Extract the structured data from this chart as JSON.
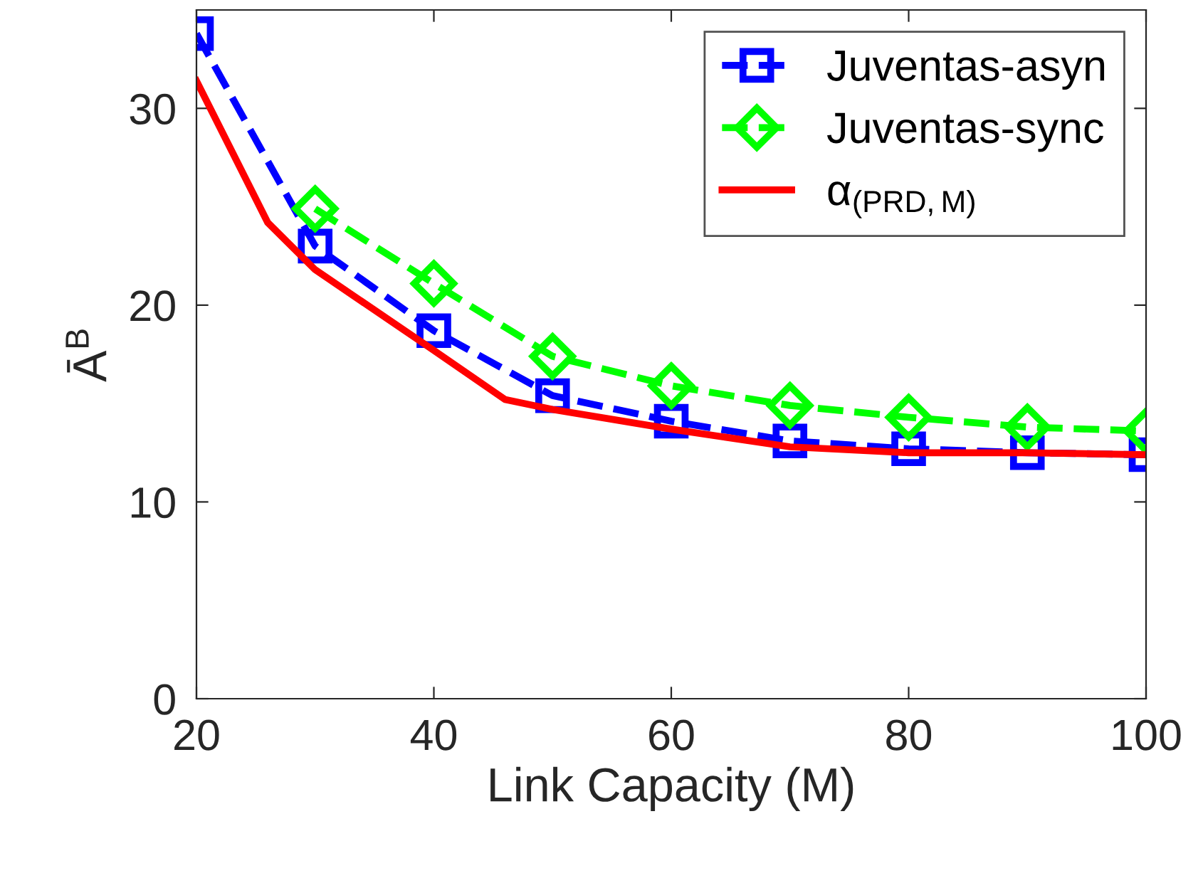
{
  "chart_data": {
    "type": "line",
    "xlabel": "Link Capacity (M)",
    "ylabel": "Ā$^{B}$",
    "xlim": [
      20,
      100
    ],
    "xticks": [
      20,
      40,
      60,
      80,
      100
    ],
    "ylim": [
      0,
      35
    ],
    "yticks": [
      0,
      10,
      20,
      30
    ],
    "grid": false,
    "legend": "top right",
    "series": [
      {
        "name": "Juventas-asyn",
        "color": "#0000ff",
        "marker": "square",
        "line_style": "dashed",
        "x": [
          20,
          30,
          40,
          50,
          60,
          70,
          80,
          90,
          100
        ],
        "values": [
          33.8,
          23.0,
          18.7,
          15.4,
          14.1,
          13.1,
          12.7,
          12.5,
          12.4
        ]
      },
      {
        "name": "Juventas-sync",
        "color": "#00ff00",
        "marker": "diamond",
        "line_style": "dashed",
        "x": [
          30,
          40,
          50,
          60,
          70,
          80,
          90,
          100
        ],
        "values": [
          24.9,
          21.1,
          17.4,
          15.9,
          14.9,
          14.3,
          13.8,
          13.6
        ]
      },
      {
        "name": "α$_{(PRD,M)}$",
        "color": "#ff0000",
        "marker": "none",
        "line_style": "solid",
        "x": [
          20,
          26,
          30,
          40,
          46,
          50,
          60,
          70,
          80,
          90,
          100
        ],
        "values": [
          31.4,
          24.2,
          21.8,
          17.7,
          15.2,
          14.7,
          13.7,
          12.8,
          12.5,
          12.5,
          12.4
        ]
      }
    ]
  }
}
